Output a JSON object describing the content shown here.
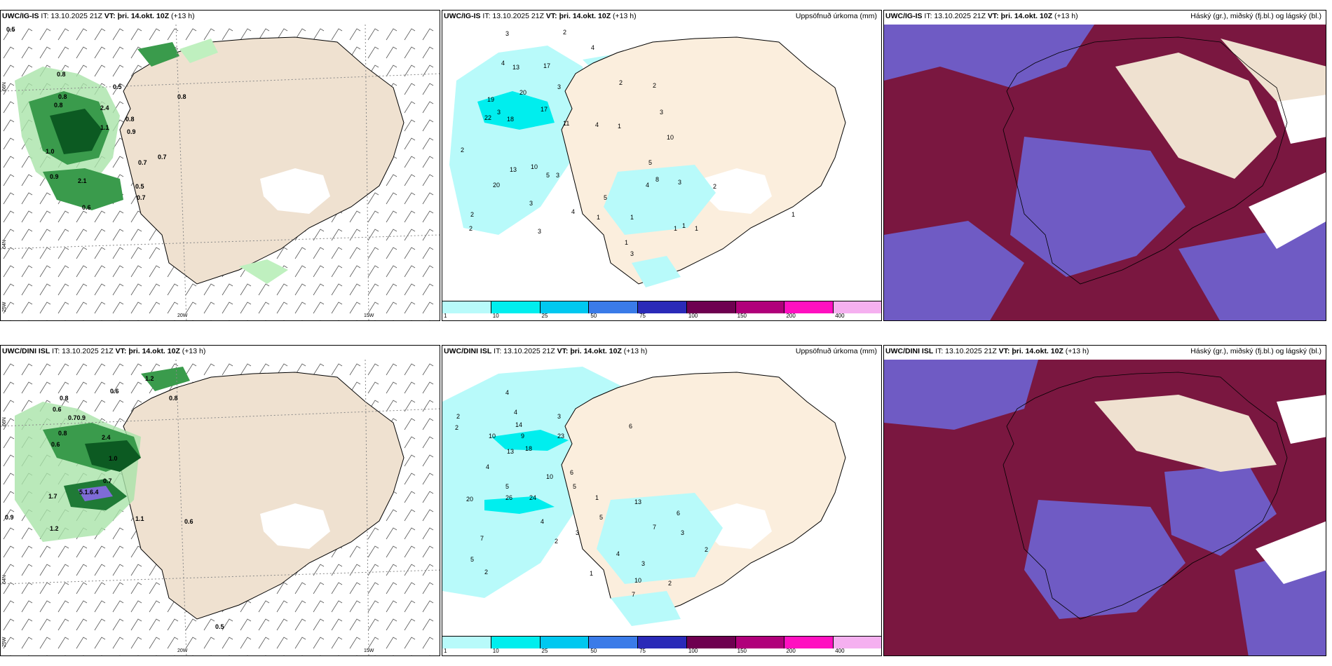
{
  "panels": [
    {
      "header_model": "UWC/IG-IS",
      "header_it": "IT: 13.10.2025 21Z",
      "header_vt": "VT: þri. 14.okt. 10Z",
      "header_step": "(+13 h)",
      "header_right": ""
    },
    {
      "header_model": "UWC/IG-IS",
      "header_it": "IT: 13.10.2025 21Z",
      "header_vt": "VT: þri. 14.okt. 10Z",
      "header_step": "(+13 h)",
      "header_right": "Uppsöfnuð úrkoma (mm)"
    },
    {
      "header_model": "UWC/IG-IS",
      "header_it": "IT: 13.10.2025 21Z",
      "header_vt": "VT: þri. 14.okt. 10Z",
      "header_step": "(+13 h)",
      "header_right": "Háský (gr.), miðský (fj.bl.) og lágský (bl.)"
    },
    {
      "header_model": "UWC/DINI ISL",
      "header_it": "IT: 13.10.2025 21Z",
      "header_vt": "VT: þri. 14.okt. 10Z",
      "header_step": "(+13 h)",
      "header_right": ""
    },
    {
      "header_model": "UWC/DINI ISL",
      "header_it": "IT: 13.10.2025 21Z",
      "header_vt": "VT: þri. 14.okt. 10Z",
      "header_step": "(+13 h)",
      "header_right": "Uppsöfnuð úrkoma (mm)"
    },
    {
      "header_model": "UWC/DINI ISL",
      "header_it": "IT: 13.10.2025 21Z",
      "header_vt": "VT: þri. 14.okt. 10Z",
      "header_step": "(+13 h)",
      "header_right": "Háský (gr.), miðský (fj.bl.) og lágský (bl.)"
    }
  ],
  "gridlabels": {
    "lat66": "66N",
    "lat64": "64N",
    "lat25": "25W",
    "lon20": "20W",
    "lon15": "15W"
  },
  "colorbar": {
    "ticks": [
      "1",
      "10",
      "25",
      "50",
      "75",
      "100",
      "150",
      "200",
      "400"
    ],
    "colors": [
      "#b8fafa",
      "#00eeee",
      "#00c8f0",
      "#3a7be8",
      "#2a2ab8",
      "#6e0050",
      "#b0007a",
      "#ff10c0",
      "#f5b0f0"
    ]
  },
  "labels": {
    "top_left": [
      "0.5",
      "0.8",
      "0.8",
      "0.5",
      "0.8",
      "1.1",
      "0.8",
      "0.8",
      "0.9",
      "1.0",
      "0.7",
      "0.9",
      "2.1",
      "0.6",
      "0.5",
      "0.7",
      "0.7",
      "2.4"
    ],
    "top_mid": [
      "3",
      "2",
      "4",
      "4",
      "13",
      "17",
      "3",
      "19",
      "20",
      "3",
      "22",
      "18",
      "17",
      "11",
      "2",
      "2",
      "2",
      "3",
      "4",
      "1",
      "10",
      "13",
      "10",
      "5",
      "3",
      "8",
      "4",
      "3",
      "1",
      "3",
      "2",
      "1",
      "3",
      "2",
      "1",
      "1",
      "1",
      "1",
      "5",
      "20",
      "4",
      "5",
      "3",
      "2",
      "1"
    ],
    "bot_left": [
      "0.8",
      "1.2",
      "0.6",
      "0.8",
      "0.6",
      "0.70.9",
      "0.8",
      "0.6",
      "2.4",
      "1.0",
      "0.7",
      "5.1.6.4",
      "1.7",
      "0.9",
      "1.2",
      "1.1",
      "0.6",
      "0.5"
    ],
    "bot_mid": [
      "2",
      "2",
      "4",
      "4",
      "3",
      "10",
      "14",
      "9",
      "23",
      "13",
      "18",
      "4",
      "10",
      "6",
      "5",
      "5",
      "26",
      "24",
      "20",
      "7",
      "5",
      "2",
      "4",
      "5",
      "2",
      "3",
      "6",
      "1",
      "13",
      "6",
      "7",
      "3",
      "2",
      "1",
      "10",
      "7",
      "4",
      "3",
      "2"
    ]
  }
}
